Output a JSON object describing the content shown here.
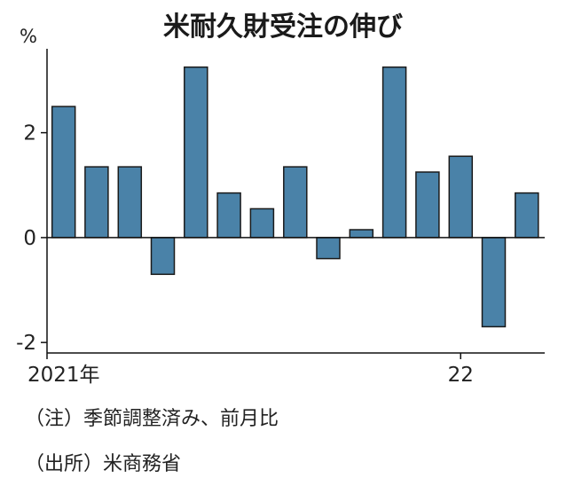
{
  "chart_data": {
    "type": "bar",
    "title": "米耐久財受注の伸び",
    "unit": "%",
    "xlabel": "",
    "ylabel": "",
    "ylim": [
      -2.2,
      3.6
    ],
    "yticks": [
      {
        "value": 2,
        "label": "2"
      },
      {
        "value": 0,
        "label": "0"
      },
      {
        "value": -2,
        "label": "-2"
      }
    ],
    "xticks": [
      {
        "index": 0,
        "label": "2021年"
      },
      {
        "index": 12,
        "label": "22"
      }
    ],
    "categories": [
      "2021-01",
      "2021-02",
      "2021-03",
      "2021-04",
      "2021-05",
      "2021-06",
      "2021-07",
      "2021-08",
      "2021-09",
      "2021-10",
      "2021-11",
      "2021-12",
      "2022-01",
      "2022-02",
      "2022-03"
    ],
    "values": [
      2.5,
      1.35,
      1.35,
      -0.7,
      3.25,
      0.85,
      0.55,
      1.35,
      -0.4,
      0.15,
      3.25,
      1.25,
      1.55,
      -1.7,
      0.85
    ],
    "bar_color": "#4a82a8",
    "grid": false,
    "legend": "none"
  },
  "notes": [
    "（注）季節調整済み、前月比",
    "（出所）米商務省"
  ]
}
